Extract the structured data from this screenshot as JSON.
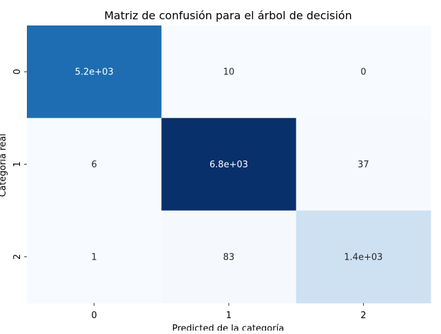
{
  "chart_data": {
    "type": "heatmap",
    "title": "Matriz de confusión para el árbol de decisión",
    "xlabel": "Predicted de la categoría",
    "ylabel": "Categoría real",
    "x_categories": [
      "0",
      "1",
      "2"
    ],
    "y_categories": [
      "0",
      "1",
      "2"
    ],
    "values": [
      [
        5200,
        10,
        0
      ],
      [
        6,
        6800,
        37
      ],
      [
        1,
        83,
        1400
      ]
    ],
    "annotations": [
      [
        "5.2e+03",
        "10",
        "0"
      ],
      [
        "6",
        "6.8e+03",
        "37"
      ],
      [
        "1",
        "83",
        "1.4e+03"
      ]
    ],
    "colormap": "Blues",
    "colors": {
      "low": "#f7fbff",
      "high": "#08306b",
      "text_dark": "#262626",
      "text_light": "#ffffff"
    },
    "colorbar": false,
    "grid": false
  }
}
